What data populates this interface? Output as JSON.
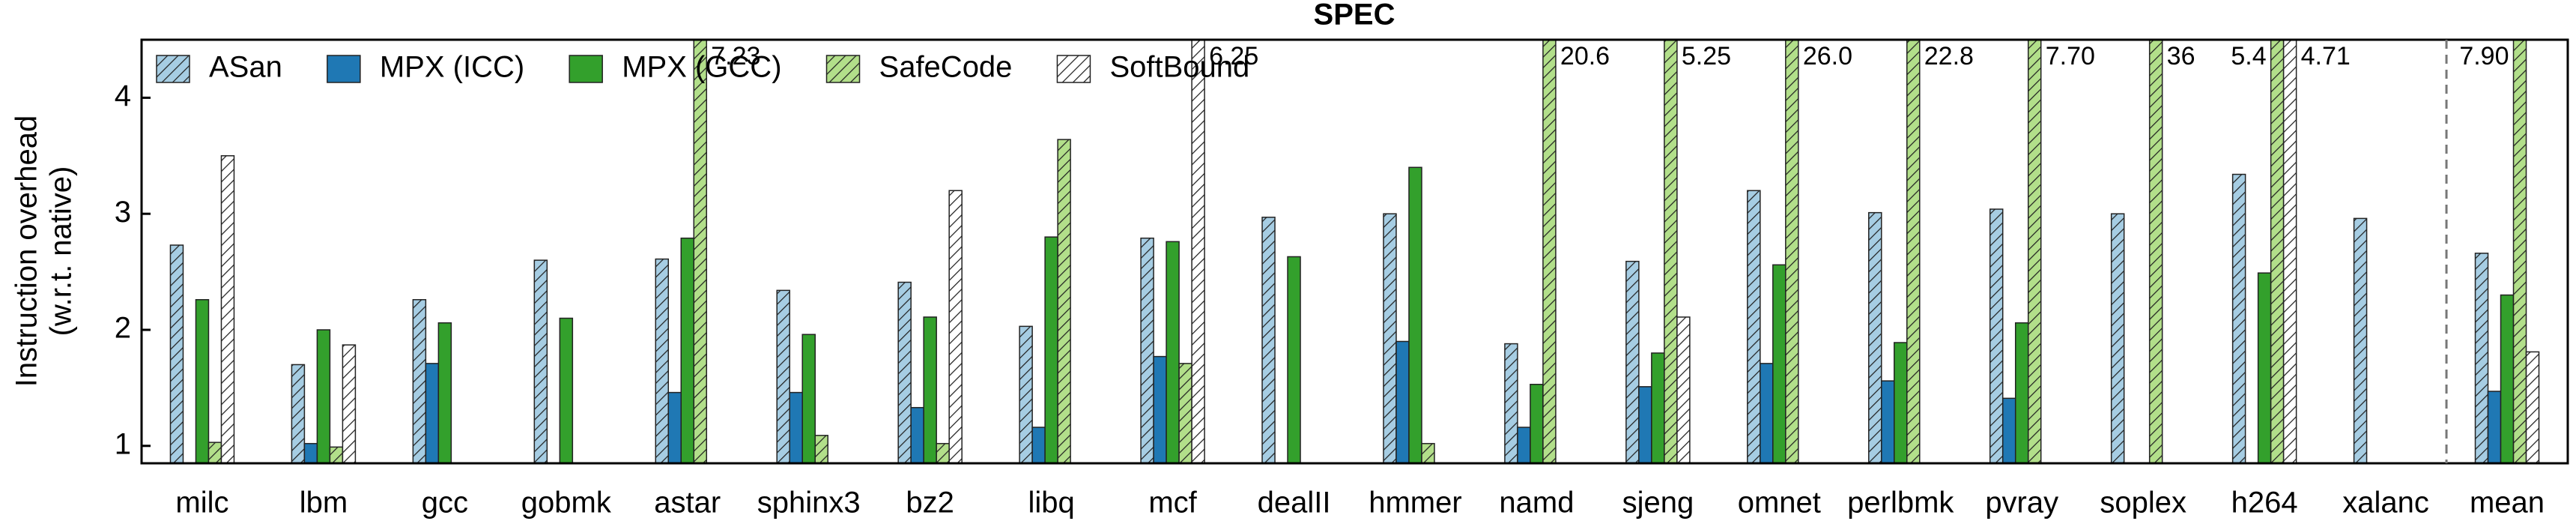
{
  "chart_data": {
    "type": "bar",
    "title": "SPEC",
    "ylabel": [
      "Instruction overhead",
      "(w.r.t. native)"
    ],
    "categories": [
      "milc",
      "lbm",
      "gcc",
      "gobmk",
      "astar",
      "sphinx3",
      "bz2",
      "libq",
      "mcf",
      "dealII",
      "hmmer",
      "namd",
      "sjeng",
      "omnet",
      "perlbmk",
      "pvray",
      "soplex",
      "h264",
      "xalanc",
      "mean"
    ],
    "series": [
      {
        "name": "ASan",
        "color": "#a6cde3",
        "hatch": true,
        "values": [
          2.73,
          1.7,
          2.26,
          2.6,
          2.61,
          2.34,
          2.41,
          2.03,
          2.79,
          2.97,
          3.0,
          1.88,
          2.59,
          3.2,
          3.01,
          3.04,
          3.0,
          3.34,
          2.96,
          2.66
        ]
      },
      {
        "name": "MPX (ICC)",
        "color": "#1f78b4",
        "hatch": false,
        "values": [
          null,
          1.02,
          1.71,
          null,
          1.46,
          1.46,
          1.33,
          1.16,
          1.77,
          null,
          1.9,
          1.16,
          1.51,
          1.71,
          1.56,
          1.41,
          null,
          null,
          null,
          1.47
        ]
      },
      {
        "name": "MPX (GCC)",
        "color": "#33a02c",
        "hatch": false,
        "values": [
          2.26,
          2.0,
          2.06,
          2.1,
          2.79,
          1.96,
          2.11,
          2.8,
          2.76,
          2.63,
          3.4,
          1.53,
          1.8,
          2.56,
          1.89,
          2.06,
          null,
          2.49,
          null,
          2.3
        ]
      },
      {
        "name": "SafeCode",
        "color": "#b2df8a",
        "hatch": true,
        "values": [
          1.03,
          0.99,
          null,
          null,
          7.23,
          1.09,
          1.02,
          3.64,
          1.71,
          null,
          1.02,
          20.6,
          5.25,
          26.0,
          22.8,
          7.7,
          36,
          5.4,
          null,
          7.9
        ],
        "value_labels": [
          null,
          null,
          null,
          null,
          "7.23",
          null,
          null,
          null,
          null,
          null,
          null,
          "20.6",
          "5.25",
          "26.0",
          "22.8",
          "7.70",
          "36",
          "5.4",
          null,
          "7.90"
        ]
      },
      {
        "name": "SoftBound",
        "color": "#ffffff",
        "hatch": true,
        "values": [
          3.5,
          1.87,
          null,
          null,
          null,
          null,
          3.2,
          null,
          6.25,
          null,
          null,
          null,
          2.11,
          null,
          null,
          null,
          null,
          4.71,
          null,
          1.81
        ],
        "value_labels": [
          null,
          null,
          null,
          null,
          null,
          null,
          null,
          null,
          "6.25",
          null,
          null,
          null,
          null,
          null,
          null,
          null,
          null,
          "4.71",
          null,
          null
        ]
      }
    ],
    "ylim": [
      0.85,
      4.5
    ],
    "yticks": [
      1,
      2,
      3,
      4
    ],
    "grid": false,
    "legend": "top-left"
  }
}
